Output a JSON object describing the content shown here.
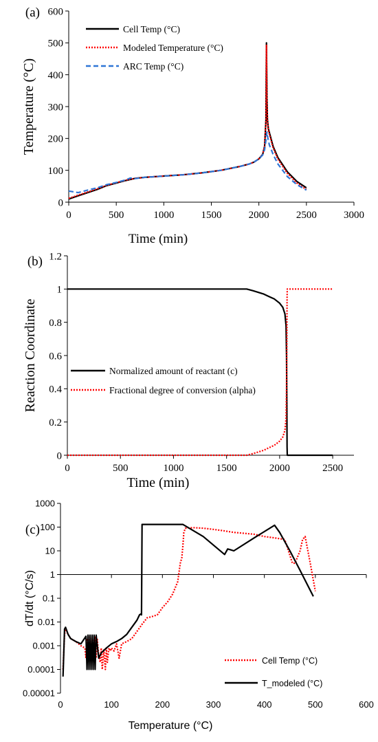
{
  "chart_data": [
    {
      "panel_label": "(a)",
      "type": "line",
      "xlabel": "Time (min)",
      "ylabel": "Temperature (°C)",
      "xlim": [
        0,
        3000
      ],
      "ylim": [
        0,
        600
      ],
      "x_ticks": [
        0,
        500,
        1000,
        1500,
        2000,
        2500,
        3000
      ],
      "y_ticks": [
        0,
        100,
        200,
        300,
        400,
        500,
        600
      ],
      "grid": false,
      "legend_position": "top-left",
      "series": [
        {
          "name": "Cell Temp (°C)",
          "color": "#000000",
          "style": "solid",
          "x": [
            0,
            100,
            200,
            300,
            400,
            500,
            600,
            700,
            800,
            1000,
            1200,
            1400,
            1600,
            1800,
            1900,
            1950,
            2000,
            2040,
            2060,
            2075,
            2080,
            2085,
            2090,
            2100,
            2150,
            2200,
            2300,
            2400,
            2500
          ],
          "y": [
            10,
            20,
            30,
            40,
            52,
            60,
            68,
            75,
            78,
            82,
            86,
            92,
            100,
            112,
            120,
            126,
            136,
            150,
            175,
            260,
            500,
            330,
            260,
            230,
            175,
            140,
            95,
            65,
            45
          ]
        },
        {
          "name": "Modeled Temperature (°C)",
          "color": "#ff0000",
          "style": "dotted",
          "x": [
            0,
            100,
            200,
            300,
            400,
            500,
            600,
            700,
            800,
            1000,
            1200,
            1400,
            1600,
            1800,
            1900,
            1950,
            2000,
            2040,
            2060,
            2075,
            2080,
            2085,
            2090,
            2100,
            2150,
            2200,
            2300,
            2400,
            2500
          ],
          "y": [
            12,
            22,
            32,
            42,
            53,
            61,
            69,
            75,
            78,
            82,
            86,
            92,
            100,
            112,
            120,
            126,
            136,
            150,
            175,
            255,
            492,
            320,
            255,
            225,
            170,
            135,
            90,
            60,
            40
          ]
        },
        {
          "name": "ARC Temp (°C)",
          "color": "#2e75d6",
          "style": "dashed",
          "x": [
            0,
            100,
            200,
            300,
            400,
            500,
            600,
            650,
            700,
            800,
            1000,
            1200,
            1400,
            1600,
            1800,
            1900,
            1950,
            2000,
            2040,
            2060,
            2075,
            2085,
            2095,
            2110,
            2150,
            2200,
            2300,
            2400,
            2500
          ],
          "y": [
            35,
            30,
            38,
            45,
            55,
            62,
            70,
            76,
            74,
            78,
            82,
            86,
            92,
            100,
            112,
            120,
            126,
            136,
            148,
            165,
            195,
            220,
            200,
            180,
            150,
            120,
            80,
            55,
            38
          ]
        }
      ]
    },
    {
      "panel_label": "(b)",
      "type": "line",
      "xlabel": "Time (min)",
      "ylabel": "Reaction Coordinate",
      "xlim": [
        0,
        2700
      ],
      "ylim": [
        0,
        1.2
      ],
      "x_ticks": [
        0,
        500,
        1000,
        1500,
        2000,
        2500
      ],
      "y_ticks": [
        0,
        0.2,
        0.4,
        0.6,
        0.8,
        1,
        1.2
      ],
      "grid": false,
      "legend_position": "center-left",
      "series": [
        {
          "name": "Normalized amount of reactant (c)",
          "color": "#000000",
          "style": "solid",
          "x": [
            0,
            1690,
            1750,
            1800,
            1850,
            1900,
            1950,
            2000,
            2030,
            2050,
            2060,
            2065,
            2068,
            2070,
            2072,
            2500
          ],
          "y": [
            1,
            1,
            0.99,
            0.98,
            0.97,
            0.955,
            0.94,
            0.915,
            0.89,
            0.85,
            0.78,
            0.6,
            0.3,
            0.05,
            0,
            0
          ]
        },
        {
          "name": "Fractional degree of conversion (alpha)",
          "color": "#ff0000",
          "style": "dotted",
          "x": [
            0,
            1690,
            1750,
            1800,
            1850,
            1900,
            1950,
            2000,
            2030,
            2050,
            2060,
            2065,
            2068,
            2070,
            2072,
            2500
          ],
          "y": [
            0,
            0,
            0.01,
            0.02,
            0.03,
            0.045,
            0.06,
            0.085,
            0.11,
            0.15,
            0.22,
            0.4,
            0.7,
            0.95,
            1,
            1
          ]
        }
      ]
    },
    {
      "panel_label": "(c)",
      "type": "line",
      "xlabel": "Temperature (°C)",
      "ylabel": "dT/dt (°C/s)",
      "xlim": [
        0,
        600
      ],
      "ylim": [
        1e-05,
        1000
      ],
      "yscale": "log",
      "x_ticks": [
        0,
        100,
        200,
        300,
        400,
        500,
        600
      ],
      "y_ticks": [
        1e-05,
        0.0001,
        0.001,
        0.01,
        0.1,
        1,
        10,
        100,
        1000
      ],
      "y_tick_labels": [
        "0.00001",
        "0.0001",
        "0.001",
        "0.01",
        "0.1",
        "1",
        "10",
        "100",
        "1000"
      ],
      "grid": false,
      "legend_position": "bottom-right",
      "series": [
        {
          "name": "Cell Temp (°C)",
          "color": "#ff0000",
          "style": "dotted",
          "x": [
            5,
            8,
            10,
            15,
            20,
            30,
            40,
            48,
            50,
            52,
            55,
            58,
            60,
            62,
            65,
            68,
            70,
            72,
            75,
            78,
            80,
            82,
            85,
            88,
            90,
            92,
            95,
            98,
            100,
            105,
            110,
            115,
            120,
            130,
            140,
            150,
            160,
            170,
            180,
            190,
            200,
            210,
            220,
            230,
            235,
            238,
            240,
            242,
            245,
            260,
            280,
            300,
            320,
            340,
            360,
            380,
            400,
            420,
            440,
            455,
            460,
            470,
            475,
            480,
            490,
            500
          ],
          "y": [
            0.0001,
            0.003,
            0.005,
            0.003,
            0.002,
            0.0015,
            0.001,
            0.0008,
            0.0003,
            0.002,
            0.0004,
            0.0025,
            0.0003,
            0.002,
            0.0005,
            0.0025,
            0.0003,
            0.002,
            0.0004,
            0.0002,
            0.0008,
            0.0001,
            0.0007,
            0.0001,
            0.0008,
            0.0002,
            0.0008,
            0.0006,
            0.0008,
            0.0006,
            0.0012,
            0.0003,
            0.0012,
            0.0015,
            0.002,
            0.004,
            0.008,
            0.015,
            0.017,
            0.02,
            0.04,
            0.07,
            0.15,
            0.5,
            3,
            5,
            15,
            60,
            90,
            95,
            90,
            80,
            70,
            60,
            55,
            50,
            40,
            35,
            30,
            3,
            3,
            10,
            30,
            40,
            3,
            0.2
          ]
        },
        {
          "name": "T_modeled (°C)",
          "color": "#000000",
          "style": "solid",
          "x": [
            5,
            8,
            10,
            15,
            20,
            30,
            40,
            50,
            52,
            54,
            56,
            58,
            60,
            62,
            64,
            66,
            68,
            70,
            75,
            80,
            90,
            100,
            110,
            120,
            130,
            140,
            150,
            155,
            158,
            159,
            160,
            200,
            240,
            280,
            322,
            328,
            334,
            340,
            380,
            420,
            430,
            450,
            470,
            496
          ],
          "y": [
            5e-05,
            0.005,
            0.006,
            0.003,
            0.002,
            0.0015,
            0.0012,
            0.0025,
            0.0001,
            0.0028,
            0.0001,
            0.0028,
            0.0001,
            0.0028,
            0.0001,
            0.0028,
            0.0001,
            0.0028,
            0.0003,
            0.0005,
            0.0008,
            0.0012,
            0.0015,
            0.002,
            0.003,
            0.006,
            0.012,
            0.02,
            0.022,
            0.02,
            130,
            130,
            130,
            40,
            7,
            12,
            11,
            10,
            35,
            120,
            60,
            10,
            1.5,
            0.12
          ]
        }
      ]
    }
  ]
}
